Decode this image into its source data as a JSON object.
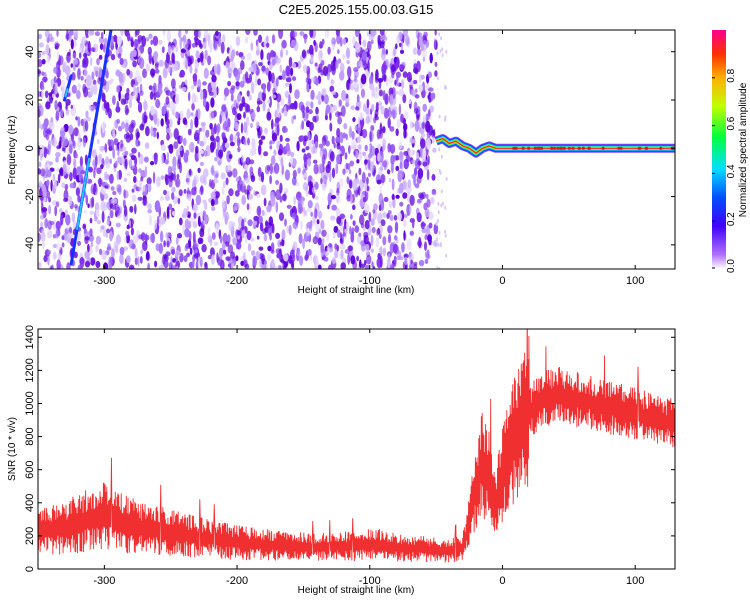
{
  "title": "C2E5.2025.155.00.03.G15",
  "colors": {
    "snr_line": "#f03030",
    "spectrogram_points": "#7b1ee0",
    "ridge": "#ff2020"
  },
  "chart_data": [
    {
      "type": "heatmap",
      "xlabel": "Height of straight line (km)",
      "ylabel": "Frequency (Hz)",
      "xlim": [
        -350,
        130
      ],
      "ylim": [
        -50,
        49
      ],
      "x_ticks": [
        -300,
        -200,
        -100,
        0,
        100
      ],
      "y_ticks": [
        -40,
        -20,
        0,
        20,
        40
      ],
      "grid": false,
      "noise_region_x": [
        -350,
        -50
      ],
      "ridge": {
        "description_points": [
          {
            "x": -50,
            "y": 3
          },
          {
            "x": -45,
            "y": 4
          },
          {
            "x": -40,
            "y": 2
          },
          {
            "x": -35,
            "y": 3
          },
          {
            "x": -30,
            "y": 1
          },
          {
            "x": -25,
            "y": 0
          },
          {
            "x": -20,
            "y": -2
          },
          {
            "x": -15,
            "y": 0
          },
          {
            "x": -10,
            "y": 1
          },
          {
            "x": -5,
            "y": 0
          },
          {
            "x": 0,
            "y": 0
          },
          {
            "x": 20,
            "y": 0
          },
          {
            "x": 40,
            "y": 0
          },
          {
            "x": 60,
            "y": 0
          },
          {
            "x": 80,
            "y": 0
          },
          {
            "x": 100,
            "y": 0
          },
          {
            "x": 130,
            "y": 0
          }
        ]
      },
      "streaks": [
        {
          "x1": -325,
          "y1": -48,
          "x2": -295,
          "y2": 49
        },
        {
          "x1": -330,
          "y1": 20,
          "x2": -325,
          "y2": 30
        }
      ],
      "colorbar": {
        "label": "Normalized spectral amplitude",
        "range": [
          0.0,
          1.0
        ],
        "ticks": [
          "0.0",
          "0.2",
          "0.4",
          "0.6",
          "0.8"
        ],
        "tick_values": [
          0.0,
          0.2,
          0.4,
          0.6,
          0.8
        ]
      }
    },
    {
      "type": "line",
      "xlabel": "Height of straight line (km)",
      "ylabel": "SNR (10 * v/v)",
      "xlim": [
        -350,
        130
      ],
      "ylim": [
        0,
        1450
      ],
      "x_ticks": [
        -300,
        -200,
        -100,
        0,
        100
      ],
      "y_ticks": [
        0,
        200,
        400,
        600,
        800,
        1000,
        1200,
        1400
      ],
      "grid": false,
      "series": [
        {
          "values_envelope": [
            {
              "x": -350,
              "y": 230
            },
            {
              "x": -330,
              "y": 250
            },
            {
              "x": -310,
              "y": 300
            },
            {
              "x": -300,
              "y": 320
            },
            {
              "x": -280,
              "y": 260
            },
            {
              "x": -250,
              "y": 220
            },
            {
              "x": -220,
              "y": 180
            },
            {
              "x": -200,
              "y": 160
            },
            {
              "x": -170,
              "y": 140
            },
            {
              "x": -140,
              "y": 130
            },
            {
              "x": -110,
              "y": 140
            },
            {
              "x": -95,
              "y": 150
            },
            {
              "x": -80,
              "y": 130
            },
            {
              "x": -60,
              "y": 120
            },
            {
              "x": -40,
              "y": 110
            },
            {
              "x": -30,
              "y": 130
            },
            {
              "x": -25,
              "y": 300
            },
            {
              "x": -20,
              "y": 500
            },
            {
              "x": -15,
              "y": 650
            },
            {
              "x": -10,
              "y": 550
            },
            {
              "x": -5,
              "y": 400
            },
            {
              "x": 0,
              "y": 550
            },
            {
              "x": 10,
              "y": 800
            },
            {
              "x": 20,
              "y": 950
            },
            {
              "x": 30,
              "y": 1020
            },
            {
              "x": 40,
              "y": 1050
            },
            {
              "x": 60,
              "y": 1020
            },
            {
              "x": 80,
              "y": 980
            },
            {
              "x": 100,
              "y": 940
            },
            {
              "x": 115,
              "y": 900
            },
            {
              "x": 130,
              "y": 880
            }
          ]
        }
      ]
    }
  ]
}
